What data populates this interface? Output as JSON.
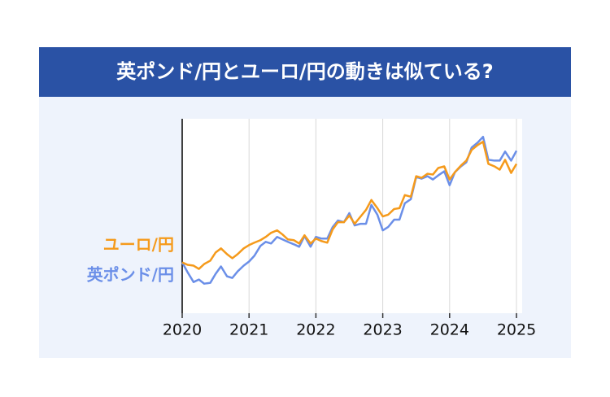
{
  "chart_data": {
    "type": "line",
    "title": "英ポンド/円とユーロ/円の動きは似ている?",
    "x": [
      2020,
      2020.08,
      2020.17,
      2020.25,
      2020.33,
      2020.42,
      2020.5,
      2020.58,
      2020.67,
      2020.75,
      2020.83,
      2020.92,
      2021,
      2021.08,
      2021.17,
      2021.25,
      2021.33,
      2021.42,
      2021.5,
      2021.58,
      2021.67,
      2021.75,
      2021.83,
      2021.92,
      2022,
      2022.08,
      2022.17,
      2022.25,
      2022.33,
      2022.42,
      2022.5,
      2022.58,
      2022.67,
      2022.75,
      2022.83,
      2022.92,
      2023,
      2023.08,
      2023.17,
      2023.25,
      2023.33,
      2023.42,
      2023.5,
      2023.58,
      2023.67,
      2023.75,
      2023.83,
      2023.92,
      2024,
      2024.08,
      2024.17,
      2024.25,
      2024.33,
      2024.42,
      2024.5,
      2024.58,
      2024.67,
      2024.75,
      2024.83,
      2024.92,
      2025
    ],
    "series": [
      {
        "name": "英ポンド/円",
        "color": "#6b8fe8",
        "values": [
          62,
          50,
          38,
          41,
          36,
          37,
          48,
          57,
          45,
          43,
          51,
          58,
          63,
          70,
          82,
          87,
          85,
          93,
          90,
          87,
          84,
          81,
          94,
          81,
          93,
          91,
          91,
          105,
          113,
          111,
          122,
          107,
          109,
          109,
          132,
          120,
          101,
          105,
          114,
          114,
          134,
          139,
          166,
          164,
          167,
          163,
          168,
          173,
          156,
          172,
          179,
          184,
          202,
          208,
          215,
          187,
          186,
          186,
          197,
          186,
          198
        ]
      },
      {
        "name": "ユーロ/円",
        "color": "#f59a1b",
        "values": [
          62,
          59,
          58,
          54,
          60,
          64,
          74,
          79,
          72,
          67,
          72,
          79,
          83,
          86,
          89,
          93,
          98,
          101,
          96,
          90,
          89,
          85,
          95,
          85,
          91,
          88,
          86,
          102,
          111,
          111,
          119,
          109,
          118,
          126,
          138,
          128,
          118,
          120,
          127,
          128,
          144,
          142,
          167,
          165,
          170,
          169,
          177,
          179,
          163,
          172,
          180,
          186,
          199,
          205,
          209,
          182,
          179,
          175,
          187,
          171,
          182
        ]
      }
    ],
    "xlim": [
      2020,
      2025
    ],
    "xticks": [
      2020,
      2021,
      2022,
      2023,
      2024,
      2025
    ],
    "ylim": [
      0,
      237
    ],
    "grid": true
  }
}
